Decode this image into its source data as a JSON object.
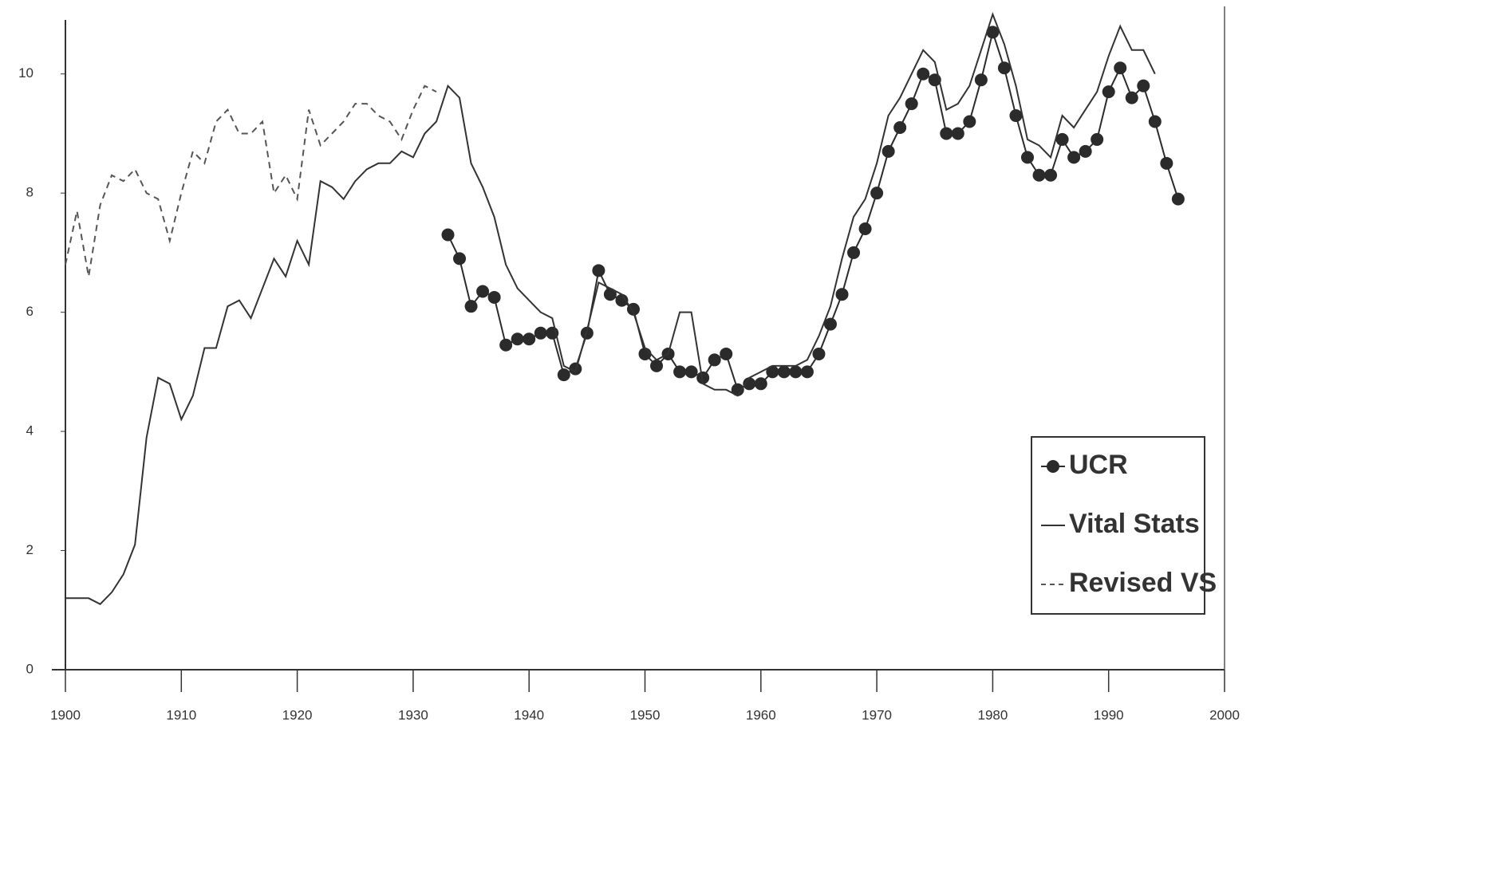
{
  "chart_data": {
    "type": "line",
    "xlim": [
      1900,
      2000
    ],
    "xticks": [
      1900,
      1910,
      1920,
      1930,
      1940,
      1950,
      1960,
      1970,
      1980,
      1990,
      2000
    ],
    "ylim": [
      0,
      11
    ],
    "yticks": [
      0,
      2,
      4,
      6,
      8,
      10
    ],
    "legend": "lower right",
    "series": [
      {
        "name": "UCR",
        "color": "#2b2b2b",
        "marker": "circle",
        "x": [
          1933,
          1934,
          1935,
          1936,
          1937,
          1938,
          1939,
          1940,
          1941,
          1942,
          1943,
          1944,
          1945,
          1946,
          1947,
          1948,
          1949,
          1950,
          1951,
          1952,
          1953,
          1954,
          1955,
          1956,
          1957,
          1958,
          1959,
          1960,
          1961,
          1962,
          1963,
          1964,
          1965,
          1966,
          1967,
          1968,
          1969,
          1970,
          1971,
          1972,
          1973,
          1974,
          1975,
          1976,
          1977,
          1978,
          1979,
          1980,
          1981,
          1982,
          1983,
          1984,
          1985,
          1986,
          1987,
          1988,
          1989,
          1990,
          1991,
          1992,
          1993,
          1994,
          1995,
          1996
        ],
        "values": [
          7.3,
          6.9,
          6.1,
          6.35,
          6.25,
          5.45,
          5.55,
          5.55,
          5.65,
          5.65,
          4.95,
          5.05,
          5.65,
          6.7,
          6.3,
          6.2,
          6.05,
          5.3,
          5.1,
          5.3,
          5.0,
          5.0,
          4.9,
          5.2,
          5.3,
          4.7,
          4.8,
          4.8,
          5.0,
          5.0,
          5.0,
          5.0,
          5.3,
          5.8,
          6.3,
          7.0,
          7.4,
          8.0,
          8.7,
          9.1,
          9.5,
          10.0,
          9.9,
          9.0,
          9.0,
          9.2,
          9.9,
          10.7,
          10.1,
          9.3,
          8.6,
          8.3,
          8.3,
          8.9,
          8.6,
          8.7,
          8.9,
          9.7,
          10.1,
          9.6,
          9.8,
          9.2,
          8.5,
          7.9
        ]
      },
      {
        "name": "Vital Stats",
        "color": "#333333",
        "dash": "solid",
        "x": [
          1900,
          1901,
          1902,
          1903,
          1904,
          1905,
          1906,
          1907,
          1908,
          1909,
          1910,
          1911,
          1912,
          1913,
          1914,
          1915,
          1916,
          1917,
          1918,
          1919,
          1920,
          1921,
          1922,
          1923,
          1924,
          1925,
          1926,
          1927,
          1928,
          1929,
          1930,
          1931,
          1932,
          1933,
          1934,
          1935,
          1936,
          1937,
          1938,
          1939,
          1940,
          1941,
          1942,
          1943,
          1944,
          1945,
          1946,
          1947,
          1948,
          1949,
          1950,
          1951,
          1952,
          1953,
          1954,
          1955,
          1956,
          1957,
          1958,
          1959,
          1960,
          1961,
          1962,
          1963,
          1964,
          1965,
          1966,
          1967,
          1968,
          1969,
          1970,
          1971,
          1972,
          1973,
          1974,
          1975,
          1976,
          1977,
          1978,
          1979,
          1980,
          1981,
          1982,
          1983,
          1984,
          1985,
          1986,
          1987,
          1988,
          1989,
          1990,
          1991,
          1992,
          1993,
          1994
        ],
        "values": [
          1.2,
          1.2,
          1.2,
          1.1,
          1.3,
          1.6,
          2.1,
          3.9,
          4.9,
          4.8,
          4.2,
          4.6,
          5.4,
          5.4,
          6.1,
          6.2,
          5.9,
          6.4,
          6.9,
          6.6,
          7.2,
          6.8,
          8.2,
          8.1,
          7.9,
          8.2,
          8.4,
          8.5,
          8.5,
          8.7,
          8.6,
          9.0,
          9.2,
          9.8,
          9.6,
          8.5,
          8.1,
          7.6,
          6.8,
          6.4,
          6.2,
          6.0,
          5.9,
          5.1,
          5.0,
          5.7,
          6.5,
          6.4,
          6.3,
          6.0,
          5.4,
          5.2,
          5.3,
          6.0,
          6.0,
          4.8,
          4.7,
          4.7,
          4.6,
          4.9,
          5.0,
          5.1,
          5.1,
          5.1,
          5.2,
          5.6,
          6.1,
          6.9,
          7.6,
          7.9,
          8.5,
          9.3,
          9.6,
          10.0,
          10.4,
          10.2,
          9.4,
          9.5,
          9.8,
          10.4,
          11.0,
          10.5,
          9.8,
          8.9,
          8.8,
          8.6,
          9.3,
          9.1,
          9.4,
          9.7,
          10.3,
          10.8,
          10.4,
          10.4,
          10.0
        ]
      },
      {
        "name": "Revised VS",
        "color": "#555555",
        "dash": "dashed",
        "x": [
          1900,
          1901,
          1902,
          1903,
          1904,
          1905,
          1906,
          1907,
          1908,
          1909,
          1910,
          1911,
          1912,
          1913,
          1914,
          1915,
          1916,
          1917,
          1918,
          1919,
          1920,
          1921,
          1922,
          1923,
          1924,
          1925,
          1926,
          1927,
          1928,
          1929,
          1930,
          1931,
          1932
        ],
        "values": [
          6.8,
          7.7,
          6.6,
          7.8,
          8.3,
          8.2,
          8.4,
          8.0,
          7.9,
          7.2,
          8.0,
          8.7,
          8.5,
          9.2,
          9.4,
          9.0,
          9.0,
          9.2,
          8.0,
          8.3,
          7.9,
          9.4,
          8.8,
          9.0,
          9.2,
          9.5,
          9.5,
          9.3,
          9.2,
          8.9,
          9.4,
          9.8,
          9.7
        ]
      }
    ]
  }
}
